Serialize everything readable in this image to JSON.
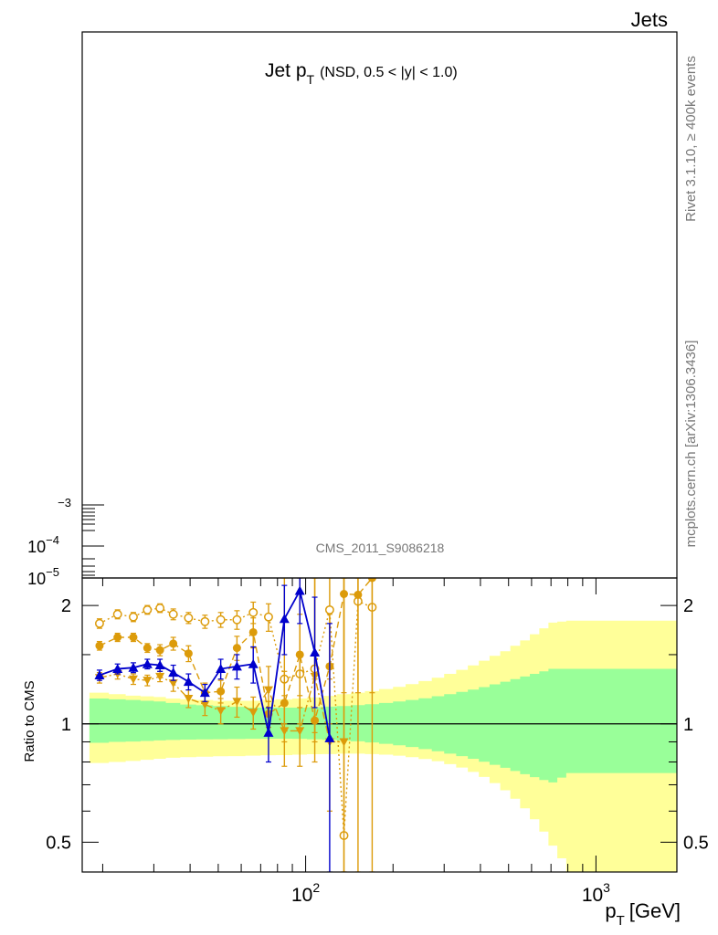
{
  "header": {
    "corner_label": "Jets"
  },
  "side_labels": {
    "rivet": "Rivet 3.1.10, ≥ 400k events",
    "mcplots": "mcplots.cern.ch [arXiv:1306.3436]"
  },
  "main_plot": {
    "title_main": "Jet p",
    "title_sub": "T",
    "title_cut": "(NSD, 0.5 < |y| < 1.0)",
    "analysis": "CMS_2011_S9086218",
    "y_tick_1": "10",
    "y_tick_1_exp": "−4",
    "y_tick_2_exp": "−3",
    "y_tick_3": "10",
    "y_tick_3_exp": "−5"
  },
  "ratio_plot": {
    "ylabel": "Ratio to CMS",
    "xlabel_main": "p",
    "xlabel_sub": "T",
    "xlabel_unit": "[GeV]"
  },
  "chart_data": {
    "type": "line",
    "x_scale": "log",
    "y_scale": "log",
    "xlim": [
      17,
      1900
    ],
    "ylim": [
      0.42,
      2.35
    ],
    "x_ticks": [
      {
        "value": 100,
        "base": "10",
        "exp": "2"
      },
      {
        "value": 1000,
        "base": "10",
        "exp": "3"
      }
    ],
    "y_ticks": [
      {
        "value": 0.5,
        "label": "0.5"
      },
      {
        "value": 1,
        "label": "1"
      },
      {
        "value": 2,
        "label": "2"
      }
    ],
    "reference_line": 1,
    "bands": {
      "edges": [
        18,
        21,
        24,
        27,
        30,
        33,
        37,
        42,
        48,
        54,
        62,
        70,
        79,
        90,
        101,
        114,
        128,
        143,
        160,
        179,
        200,
        221,
        245,
        272,
        300,
        330,
        362,
        395,
        430,
        468,
        507,
        548,
        592,
        638,
        686,
        736,
        790,
        1900
      ],
      "yellow_lo": [
        0.795,
        0.8,
        0.805,
        0.81,
        0.815,
        0.82,
        0.823,
        0.825,
        0.827,
        0.828,
        0.83,
        0.832,
        0.833,
        0.835,
        0.837,
        0.838,
        0.84,
        0.84,
        0.838,
        0.835,
        0.83,
        0.823,
        0.814,
        0.804,
        0.79,
        0.774,
        0.755,
        0.733,
        0.707,
        0.678,
        0.645,
        0.61,
        0.572,
        0.532,
        0.49,
        0.455,
        0.42
      ],
      "yellow_hi": [
        1.2,
        1.19,
        1.18,
        1.175,
        1.17,
        1.16,
        1.155,
        1.15,
        1.145,
        1.145,
        1.145,
        1.15,
        1.155,
        1.16,
        1.168,
        1.178,
        1.19,
        1.2,
        1.212,
        1.226,
        1.242,
        1.262,
        1.285,
        1.31,
        1.34,
        1.372,
        1.408,
        1.447,
        1.49,
        1.53,
        1.58,
        1.63,
        1.69,
        1.75,
        1.81,
        1.82,
        1.83
      ],
      "green_lo": [
        0.895,
        0.9,
        0.902,
        0.905,
        0.908,
        0.91,
        0.912,
        0.913,
        0.914,
        0.915,
        0.916,
        0.917,
        0.917,
        0.916,
        0.914,
        0.911,
        0.907,
        0.903,
        0.897,
        0.89,
        0.882,
        0.873,
        0.863,
        0.852,
        0.84,
        0.828,
        0.815,
        0.801,
        0.787,
        0.773,
        0.759,
        0.745,
        0.732,
        0.72,
        0.71,
        0.73,
        0.75
      ],
      "green_hi": [
        1.16,
        1.155,
        1.15,
        1.145,
        1.14,
        1.13,
        1.12,
        1.115,
        1.11,
        1.105,
        1.1,
        1.1,
        1.1,
        1.1,
        1.102,
        1.106,
        1.11,
        1.116,
        1.122,
        1.13,
        1.14,
        1.15,
        1.162,
        1.176,
        1.19,
        1.206,
        1.222,
        1.24,
        1.26,
        1.28,
        1.3,
        1.32,
        1.34,
        1.36,
        1.38,
        1.38,
        1.38
      ]
    },
    "series": [
      {
        "color": "#dc9b0a",
        "marker": "open-circle",
        "dash": "2,3",
        "points": [
          {
            "x": 19.5,
            "y": 1.8,
            "lo": 1.75,
            "hi": 1.85
          },
          {
            "x": 22.5,
            "y": 1.9,
            "lo": 1.85,
            "hi": 1.95
          },
          {
            "x": 25.5,
            "y": 1.87,
            "lo": 1.82,
            "hi": 1.92
          },
          {
            "x": 28.5,
            "y": 1.95,
            "lo": 1.9,
            "hi": 2.0
          },
          {
            "x": 31.5,
            "y": 1.97,
            "lo": 1.92,
            "hi": 2.02
          },
          {
            "x": 35,
            "y": 1.9,
            "lo": 1.84,
            "hi": 1.96
          },
          {
            "x": 39.5,
            "y": 1.86,
            "lo": 1.8,
            "hi": 1.92
          },
          {
            "x": 45,
            "y": 1.82,
            "lo": 1.75,
            "hi": 1.89
          },
          {
            "x": 51,
            "y": 1.84,
            "lo": 1.76,
            "hi": 1.92
          },
          {
            "x": 58,
            "y": 1.84,
            "lo": 1.74,
            "hi": 1.94
          },
          {
            "x": 66,
            "y": 1.92,
            "lo": 1.8,
            "hi": 2.04
          },
          {
            "x": 74.5,
            "y": 1.87,
            "lo": 1.72,
            "hi": 2.02
          },
          {
            "x": 84.5,
            "y": 1.3,
            "lo": 1.0,
            "hi": 2.35
          },
          {
            "x": 95.5,
            "y": 1.34,
            "lo": 1.0,
            "hi": 2.35
          },
          {
            "x": 107.5,
            "y": 1.38,
            "lo": 0.9,
            "hi": 2.35
          },
          {
            "x": 121,
            "y": 1.95,
            "lo": 1.3,
            "hi": 2.35
          },
          {
            "x": 135.5,
            "y": 0.52,
            "lo": 0.42,
            "hi": 2.35
          },
          {
            "x": 151.5,
            "y": 2.05,
            "lo": 0.42,
            "hi": 2.35
          },
          {
            "x": 169.5,
            "y": 1.98,
            "lo": 0.42,
            "hi": 2.35
          }
        ]
      },
      {
        "color": "#dc9b0a",
        "marker": "filled-circle",
        "dash": "7,4",
        "points": [
          {
            "x": 19.5,
            "y": 1.58,
            "lo": 1.54,
            "hi": 1.62
          },
          {
            "x": 22.5,
            "y": 1.66,
            "lo": 1.62,
            "hi": 1.7
          },
          {
            "x": 25.5,
            "y": 1.66,
            "lo": 1.62,
            "hi": 1.7
          },
          {
            "x": 28.5,
            "y": 1.56,
            "lo": 1.52,
            "hi": 1.6
          },
          {
            "x": 31.5,
            "y": 1.54,
            "lo": 1.49,
            "hi": 1.59
          },
          {
            "x": 35,
            "y": 1.6,
            "lo": 1.54,
            "hi": 1.66
          },
          {
            "x": 39.5,
            "y": 1.51,
            "lo": 1.44,
            "hi": 1.58
          },
          {
            "x": 45,
            "y": 1.2,
            "lo": 1.13,
            "hi": 1.27
          },
          {
            "x": 51,
            "y": 1.21,
            "lo": 1.13,
            "hi": 1.29
          },
          {
            "x": 58,
            "y": 1.56,
            "lo": 1.45,
            "hi": 1.67
          },
          {
            "x": 66,
            "y": 1.71,
            "lo": 1.56,
            "hi": 1.86
          },
          {
            "x": 74.5,
            "y": 1.06,
            "lo": 0.98,
            "hi": 1.14
          },
          {
            "x": 84.5,
            "y": 1.13,
            "lo": 0.9,
            "hi": 1.36
          },
          {
            "x": 95.5,
            "y": 1.5,
            "lo": 1.1,
            "hi": 1.9
          },
          {
            "x": 107.5,
            "y": 1.02,
            "lo": 0.8,
            "hi": 1.3
          },
          {
            "x": 121,
            "y": 1.4,
            "lo": 1.0,
            "hi": 1.9
          },
          {
            "x": 135.5,
            "y": 2.14,
            "lo": 1.2,
            "hi": 2.35
          },
          {
            "x": 151.5,
            "y": 2.13,
            "lo": 1.2,
            "hi": 2.35
          },
          {
            "x": 169.5,
            "y": 2.35,
            "lo": 1.2,
            "hi": 2.35
          }
        ]
      },
      {
        "color": "#dc9b0a",
        "marker": "filled-triangle-down",
        "dash": "8,3,2,3",
        "points": [
          {
            "x": 19.5,
            "y": 1.31,
            "lo": 1.27,
            "hi": 1.35
          },
          {
            "x": 22.5,
            "y": 1.34,
            "lo": 1.3,
            "hi": 1.38
          },
          {
            "x": 25.5,
            "y": 1.3,
            "lo": 1.26,
            "hi": 1.34
          },
          {
            "x": 28.5,
            "y": 1.29,
            "lo": 1.25,
            "hi": 1.33
          },
          {
            "x": 31.5,
            "y": 1.32,
            "lo": 1.28,
            "hi": 1.36
          },
          {
            "x": 35,
            "y": 1.27,
            "lo": 1.21,
            "hi": 1.33
          },
          {
            "x": 39.5,
            "y": 1.16,
            "lo": 1.1,
            "hi": 1.22
          },
          {
            "x": 45,
            "y": 1.12,
            "lo": 1.05,
            "hi": 1.19
          },
          {
            "x": 51,
            "y": 1.08,
            "lo": 1.0,
            "hi": 1.16
          },
          {
            "x": 58,
            "y": 1.14,
            "lo": 1.04,
            "hi": 1.24
          },
          {
            "x": 66,
            "y": 1.07,
            "lo": 0.97,
            "hi": 1.17
          },
          {
            "x": 74.5,
            "y": 1.22,
            "lo": 1.05,
            "hi": 1.4
          },
          {
            "x": 84.5,
            "y": 0.96,
            "lo": 0.78,
            "hi": 1.18
          },
          {
            "x": 95.5,
            "y": 0.96,
            "lo": 0.78,
            "hi": 1.18
          },
          {
            "x": 107.5,
            "y": 1.32,
            "lo": 0.95,
            "hi": 2.35
          },
          {
            "x": 121,
            "y": 0.9,
            "lo": 0.6,
            "hi": 1.4
          },
          {
            "x": 135.5,
            "y": 0.9,
            "lo": 0.42,
            "hi": 2.35
          }
        ]
      },
      {
        "color": "#0000cc",
        "marker": "filled-triangle-up",
        "dash": "",
        "points": [
          {
            "x": 19.5,
            "y": 1.33,
            "lo": 1.29,
            "hi": 1.37
          },
          {
            "x": 22.5,
            "y": 1.38,
            "lo": 1.34,
            "hi": 1.42
          },
          {
            "x": 25.5,
            "y": 1.39,
            "lo": 1.35,
            "hi": 1.43
          },
          {
            "x": 28.5,
            "y": 1.42,
            "lo": 1.38,
            "hi": 1.46
          },
          {
            "x": 31.5,
            "y": 1.41,
            "lo": 1.36,
            "hi": 1.46
          },
          {
            "x": 35,
            "y": 1.35,
            "lo": 1.29,
            "hi": 1.41
          },
          {
            "x": 39.5,
            "y": 1.28,
            "lo": 1.22,
            "hi": 1.34
          },
          {
            "x": 45,
            "y": 1.2,
            "lo": 1.14,
            "hi": 1.26
          },
          {
            "x": 51,
            "y": 1.38,
            "lo": 1.3,
            "hi": 1.46
          },
          {
            "x": 58,
            "y": 1.4,
            "lo": 1.3,
            "hi": 1.5
          },
          {
            "x": 66,
            "y": 1.42,
            "lo": 1.27,
            "hi": 1.57
          },
          {
            "x": 74.5,
            "y": 0.95,
            "lo": 0.8,
            "hi": 1.1
          },
          {
            "x": 84.5,
            "y": 1.85,
            "lo": 1.5,
            "hi": 2.25
          },
          {
            "x": 95.5,
            "y": 2.18,
            "lo": 1.8,
            "hi": 2.35
          },
          {
            "x": 107.5,
            "y": 1.52,
            "lo": 1.1,
            "hi": 2.1
          },
          {
            "x": 121,
            "y": 0.92,
            "lo": 0.42,
            "hi": 1.8
          }
        ]
      }
    ]
  }
}
